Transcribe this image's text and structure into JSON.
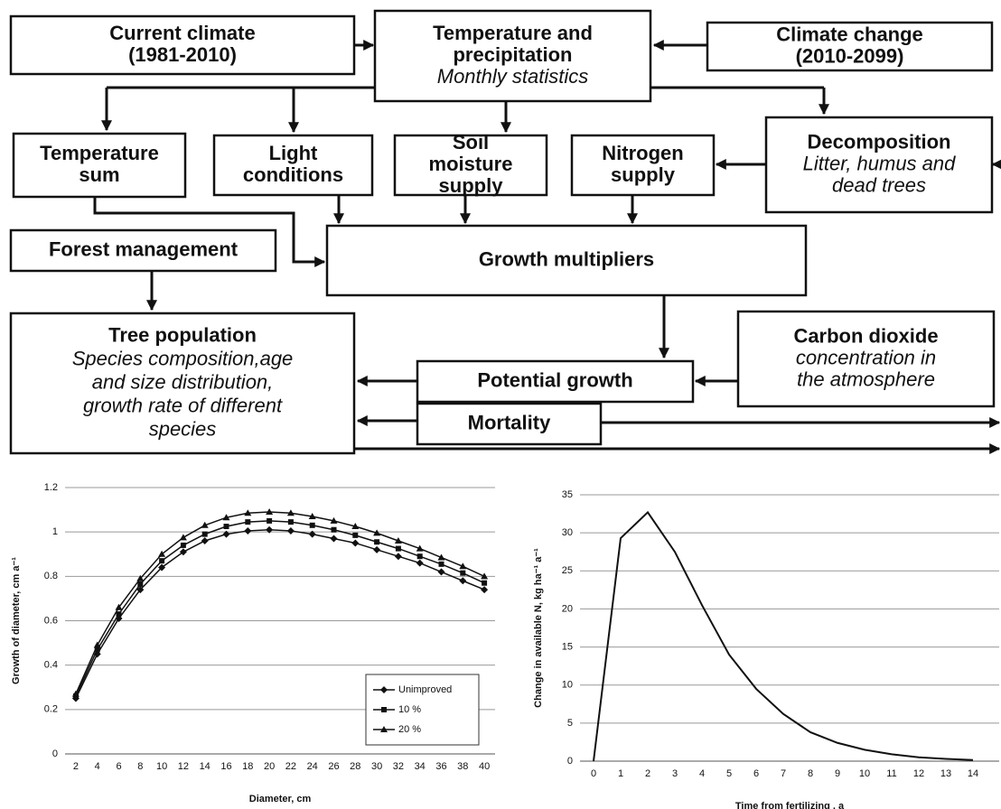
{
  "diagram": {
    "nodes": [
      {
        "bold": [
          "Current climate",
          "(1981-2010)"
        ]
      },
      {
        "bold": [
          "Temperature and",
          "precipitation"
        ],
        "italic": [
          "Monthly statistics"
        ]
      },
      {
        "bold": [
          "Climate change",
          "(2010-2099)"
        ]
      },
      {
        "bold": [
          "Temperature",
          "sum"
        ]
      },
      {
        "bold": [
          "Light",
          "conditions"
        ]
      },
      {
        "bold": [
          "Soil",
          "moisture",
          "supply"
        ]
      },
      {
        "bold": [
          "Nitrogen",
          "supply"
        ]
      },
      {
        "bold": [
          "Decomposition"
        ],
        "italic": [
          "Litter, humus and",
          "dead trees"
        ]
      },
      {
        "bold": [
          "Forest management"
        ]
      },
      {
        "bold": [
          "Growth multipliers"
        ]
      },
      {
        "bold": [
          "Tree population"
        ],
        "italic": [
          "Species composition,age",
          "and size distribution,",
          "growth rate of different",
          "species"
        ]
      },
      {
        "bold": [
          "Carbon dioxide"
        ],
        "italic": [
          "concentration in",
          "the atmosphere"
        ]
      },
      {
        "bold": [
          "Potential growth"
        ]
      },
      {
        "bold": [
          "Mortality"
        ]
      }
    ]
  },
  "chart_data": [
    {
      "type": "line",
      "y_label": "Growth of diameter, cm a⁻¹",
      "x_label": "Diameter, cm",
      "categories": [
        2,
        4,
        6,
        8,
        10,
        12,
        14,
        16,
        18,
        20,
        22,
        24,
        26,
        28,
        30,
        32,
        34,
        36,
        38,
        40
      ],
      "series": [
        {
          "name": "Unimproved",
          "color": "#111111",
          "marker": "diamond",
          "values": [
            0.25,
            0.45,
            0.61,
            0.74,
            0.84,
            0.91,
            0.96,
            0.99,
            1.005,
            1.01,
            1.005,
            0.99,
            0.97,
            0.95,
            0.92,
            0.89,
            0.86,
            0.82,
            0.78,
            0.74
          ]
        },
        {
          "name": "10 %",
          "color": "#111111",
          "marker": "square",
          "values": [
            0.26,
            0.47,
            0.63,
            0.765,
            0.87,
            0.94,
            0.99,
            1.025,
            1.045,
            1.05,
            1.045,
            1.03,
            1.01,
            0.985,
            0.955,
            0.925,
            0.89,
            0.855,
            0.815,
            0.77
          ]
        },
        {
          "name": "20 %",
          "color": "#111111",
          "marker": "triangle",
          "values": [
            0.27,
            0.49,
            0.66,
            0.79,
            0.9,
            0.975,
            1.03,
            1.065,
            1.085,
            1.09,
            1.085,
            1.07,
            1.05,
            1.025,
            0.995,
            0.96,
            0.925,
            0.885,
            0.845,
            0.8
          ]
        }
      ],
      "ylim": [
        0,
        1.2
      ],
      "yticks": [
        0,
        0.2,
        0.4,
        0.6,
        0.8,
        1,
        1.2
      ],
      "grid": true,
      "legend": "lower right"
    },
    {
      "type": "line",
      "y_label": "Change in available N, kg ha⁻¹ a⁻¹",
      "x_label": "Time from fertilizing , a",
      "categories": [
        0,
        1,
        2,
        3,
        4,
        5,
        6,
        7,
        8,
        9,
        10,
        11,
        12,
        13,
        14
      ],
      "color": "#111111",
      "values": [
        0,
        29.3,
        32.7,
        27.5,
        20.5,
        14,
        9.5,
        6.2,
        3.8,
        2.4,
        1.5,
        0.9,
        0.5,
        0.3,
        0.15
      ],
      "ylim": [
        0,
        35
      ],
      "yticks": [
        0,
        5,
        10,
        15,
        20,
        25,
        30,
        35
      ],
      "grid": true
    }
  ]
}
